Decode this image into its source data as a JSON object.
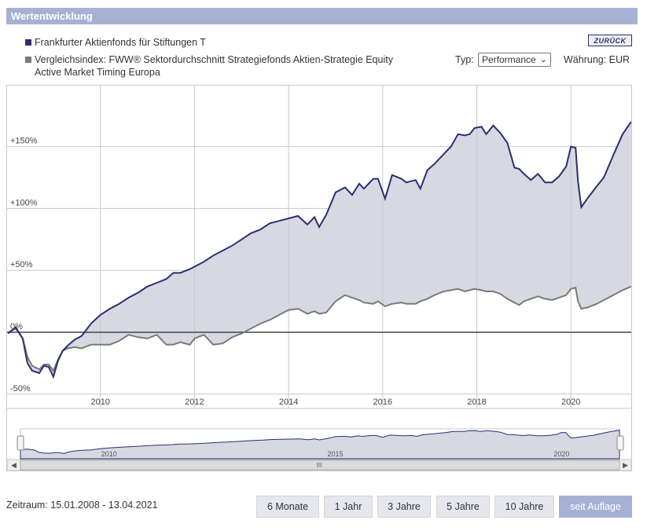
{
  "header": {
    "title": "Wertentwicklung"
  },
  "legend": {
    "fund": "Frankfurter Aktienfonds für Stiftungen T",
    "index_line1": "Vergleichsindex: FWW® Sektordurchschnitt Strategiefonds Aktien-Strategie Equity",
    "index_line2": "Active Market Timing Europa"
  },
  "back_button": "ZURÜCK",
  "controls": {
    "typ_label": "Typ:",
    "typ_value": "Performance",
    "waehrung": "Währung: EUR"
  },
  "footer": {
    "zeitraum": "Zeitraum: 15.01.2008 - 13.04.2021",
    "buttons": [
      "6 Monate",
      "1 Jahr",
      "3 Jahre",
      "5 Jahre",
      "10 Jahre",
      "seit Auflage"
    ],
    "active_button": "seit Auflage"
  },
  "navigator": {
    "labels": [
      "2010",
      "2015",
      "2020"
    ],
    "scroll_grip": "III"
  },
  "chart_data": {
    "type": "area",
    "x_unit": "year",
    "xlim": [
      2008.04,
      2021.28
    ],
    "ylim": [
      -50,
      200
    ],
    "yticks": [
      -50,
      0,
      50,
      100,
      150
    ],
    "ytick_labels": [
      "-50%",
      "0%",
      "+50%",
      "+100%",
      "+150%"
    ],
    "xticks": [
      2010,
      2012,
      2014,
      2016,
      2018,
      2020
    ],
    "xtick_labels": [
      "2010",
      "2012",
      "2014",
      "2016",
      "2018",
      "2020"
    ],
    "colors": {
      "fund": "#2b2f6e",
      "index": "#7a7a7a",
      "fill": "#d7d8e2",
      "grid": "#c8c8c8",
      "zero": "#444444"
    },
    "series": [
      {
        "name": "Frankfurter Aktienfonds für Stiftungen T",
        "x": [
          2008.04,
          2008.2,
          2008.35,
          2008.45,
          2008.55,
          2008.7,
          2008.8,
          2008.9,
          2009.0,
          2009.1,
          2009.2,
          2009.3,
          2009.45,
          2009.6,
          2009.8,
          2010.0,
          2010.2,
          2010.4,
          2010.6,
          2010.8,
          2011.0,
          2011.2,
          2011.4,
          2011.55,
          2011.7,
          2011.9,
          2012.0,
          2012.2,
          2012.4,
          2012.6,
          2012.8,
          2013.0,
          2013.2,
          2013.4,
          2013.6,
          2013.8,
          2014.0,
          2014.2,
          2014.4,
          2014.55,
          2014.65,
          2014.8,
          2015.0,
          2015.2,
          2015.35,
          2015.5,
          2015.6,
          2015.8,
          2015.9,
          2016.05,
          2016.2,
          2016.4,
          2016.5,
          2016.7,
          2016.8,
          2016.95,
          2017.1,
          2017.3,
          2017.45,
          2017.6,
          2017.75,
          2017.85,
          2017.95,
          2018.1,
          2018.2,
          2018.35,
          2018.5,
          2018.65,
          2018.8,
          2018.9,
          2019.0,
          2019.15,
          2019.3,
          2019.45,
          2019.6,
          2019.75,
          2019.9,
          2020.0,
          2020.1,
          2020.15,
          2020.22,
          2020.35,
          2020.55,
          2020.7,
          2020.9,
          2021.1,
          2021.28
        ],
        "values": [
          -1,
          4,
          -5,
          -25,
          -31,
          -33,
          -27,
          -28,
          -36,
          -23,
          -15,
          -11,
          -6,
          -3,
          7,
          14,
          19,
          23,
          28,
          32,
          37,
          40,
          43,
          48,
          48,
          51,
          53,
          57,
          62,
          66,
          70,
          75,
          80,
          83,
          88,
          90,
          92,
          94,
          87,
          93,
          85,
          95,
          113,
          117,
          111,
          120,
          116,
          124,
          124,
          108,
          127,
          124,
          121,
          123,
          116,
          131,
          136,
          144,
          150,
          160,
          159,
          160,
          165,
          166,
          160,
          167,
          161,
          153,
          133,
          132,
          128,
          123,
          128,
          121,
          121,
          126,
          134,
          150,
          149,
          122,
          101,
          108,
          118,
          125,
          143,
          160,
          170
        ]
      },
      {
        "name": "Vergleichsindex: FWW® Sektordurchschnitt Strategiefonds Aktien-Strategie Equity Active Market Timing Europa",
        "x": [
          2008.04,
          2008.2,
          2008.35,
          2008.45,
          2008.55,
          2008.7,
          2008.8,
          2008.9,
          2009.0,
          2009.1,
          2009.2,
          2009.3,
          2009.45,
          2009.6,
          2009.8,
          2010.0,
          2010.2,
          2010.4,
          2010.6,
          2010.8,
          2011.0,
          2011.2,
          2011.4,
          2011.55,
          2011.7,
          2011.9,
          2012.0,
          2012.2,
          2012.4,
          2012.6,
          2012.8,
          2013.0,
          2013.2,
          2013.4,
          2013.6,
          2013.8,
          2014.0,
          2014.2,
          2014.4,
          2014.55,
          2014.65,
          2014.8,
          2015.0,
          2015.2,
          2015.35,
          2015.5,
          2015.6,
          2015.8,
          2015.9,
          2016.05,
          2016.2,
          2016.4,
          2016.5,
          2016.7,
          2016.8,
          2016.95,
          2017.1,
          2017.3,
          2017.45,
          2017.6,
          2017.75,
          2017.85,
          2017.95,
          2018.1,
          2018.2,
          2018.35,
          2018.5,
          2018.65,
          2018.8,
          2018.9,
          2019.0,
          2019.15,
          2019.3,
          2019.45,
          2019.6,
          2019.75,
          2019.9,
          2020.0,
          2020.1,
          2020.15,
          2020.22,
          2020.35,
          2020.55,
          2020.7,
          2020.9,
          2021.1,
          2021.28
        ],
        "values": [
          0,
          3,
          -5,
          -20,
          -27,
          -30,
          -26,
          -26,
          -31,
          -22,
          -15,
          -13,
          -12,
          -13,
          -10,
          -10,
          -10,
          -7,
          -2,
          -4,
          -5,
          -2,
          -10,
          -10,
          -8,
          -10,
          -5,
          -2,
          -10,
          -9,
          -4,
          -1,
          3,
          7,
          10,
          14,
          18,
          19,
          15,
          17,
          15,
          16,
          25,
          30,
          28,
          26,
          24,
          23,
          25,
          21,
          23,
          24,
          23,
          23,
          25,
          27,
          30,
          33,
          34,
          35,
          33,
          34,
          35,
          34,
          33,
          33,
          31,
          27,
          24,
          22,
          25,
          27,
          29,
          27,
          26,
          28,
          30,
          35,
          36,
          25,
          19,
          20,
          23,
          26,
          30,
          34,
          37
        ]
      }
    ]
  }
}
